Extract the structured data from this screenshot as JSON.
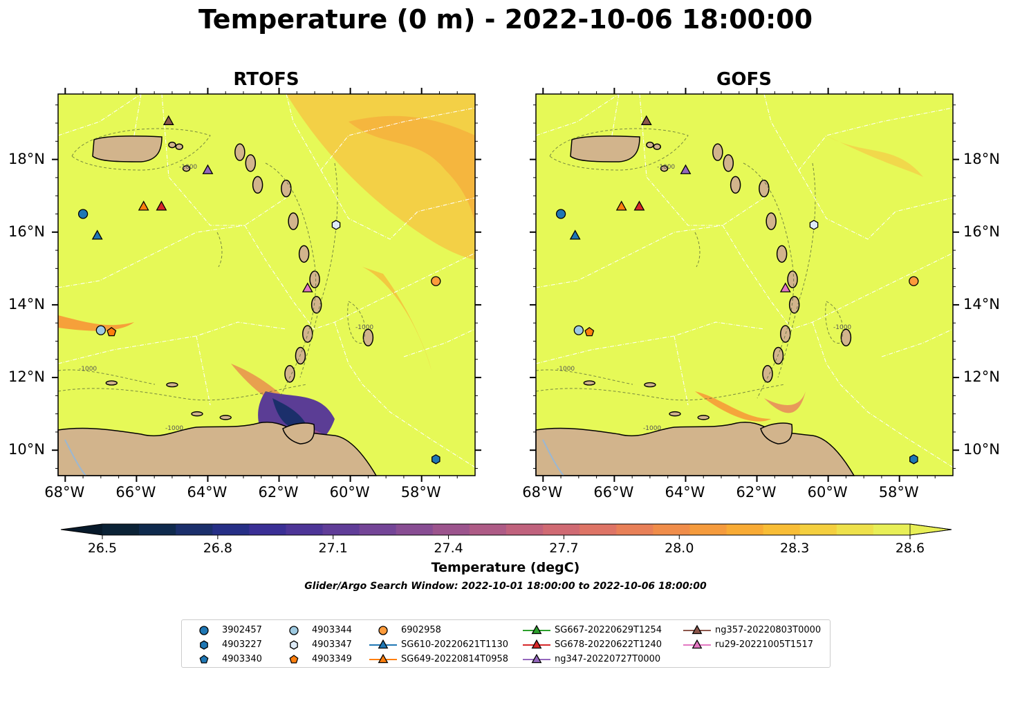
{
  "title": "Temperature (0 m) - 2022-10-06 18:00:00",
  "panels": [
    {
      "title": "RTOFS"
    },
    {
      "title": "GOFS"
    }
  ],
  "map": {
    "lon_range": [
      -68.2,
      -56.5
    ],
    "lat_range": [
      9.3,
      19.8
    ],
    "lon_ticks": [
      "68°W",
      "66°W",
      "64°W",
      "62°W",
      "60°W",
      "58°W"
    ],
    "lon_tick_values": [
      -68,
      -66,
      -64,
      -62,
      -60,
      -58
    ],
    "lat_ticks": [
      "18°N",
      "16°N",
      "14°N",
      "12°N",
      "10°N"
    ],
    "lat_tick_values": [
      18,
      16,
      14,
      12,
      10
    ],
    "contour_label": "-1000"
  },
  "colorbar": {
    "label": "Temperature (degC)",
    "range": [
      26.5,
      28.6
    ],
    "ticks": [
      "26.5",
      "26.8",
      "27.1",
      "27.4",
      "27.7",
      "28.0",
      "28.3",
      "28.6"
    ],
    "colors": [
      "#0b2236",
      "#0f2a4d",
      "#1b2f6b",
      "#262f86",
      "#3a2f95",
      "#4d3597",
      "#603d98",
      "#744597",
      "#884d93",
      "#9c548d",
      "#ae5b86",
      "#c0627d",
      "#d06a73",
      "#de7466",
      "#e88058",
      "#f08d4a",
      "#f59b3d",
      "#f8ab35",
      "#f8bd36",
      "#f4cf3f",
      "#eee14b",
      "#e8ef57"
    ]
  },
  "search_window": "Glider/Argo Search Window: 2022-10-01 18:00:00 to 2022-10-06 18:00:00",
  "colors": {
    "ocean": "#e6f957",
    "land": "#d2b48c",
    "warm": "#f7b53b",
    "cool": "#5b3d95"
  },
  "markers": [
    {
      "id": "3902457",
      "shape": "circle",
      "color": "#1f77b4",
      "lon": -67.5,
      "lat": 16.5
    },
    {
      "id": "4903227",
      "shape": "hexagon",
      "color": "#1f77b4",
      "lon": -57.6,
      "lat": 9.75
    },
    {
      "id": "4903340",
      "shape": "pentagon",
      "color": "#1f77b4",
      "lon": null,
      "lat": null
    },
    {
      "id": "4903344",
      "shape": "circle",
      "color": "#9ecae1",
      "lon": -67.0,
      "lat": 13.3
    },
    {
      "id": "4903347",
      "shape": "hexagon",
      "color": "#deebf7",
      "lon": -60.4,
      "lat": 16.2
    },
    {
      "id": "4903349",
      "shape": "pentagon",
      "color": "#ff7f0e",
      "lon": -66.7,
      "lat": 13.25
    },
    {
      "id": "6902958",
      "shape": "circle",
      "color": "#fd9b3b",
      "lon": -57.6,
      "lat": 14.65
    },
    {
      "id": "SG610-20220621T1130",
      "shape": "triangle",
      "color": "#1f77b4",
      "lon": -67.1,
      "lat": 15.9
    },
    {
      "id": "SG649-20220814T0958",
      "shape": "triangle",
      "color": "#ff7f0e",
      "lon": -65.8,
      "lat": 16.7
    },
    {
      "id": "SG667-20220629T1254",
      "shape": "triangle",
      "color": "#2ca02c",
      "lon": null,
      "lat": null
    },
    {
      "id": "SG678-20220622T1240",
      "shape": "triangle",
      "color": "#d62728",
      "lon": -65.3,
      "lat": 16.7
    },
    {
      "id": "ng347-20220727T0000",
      "shape": "triangle",
      "color": "#9467bd",
      "lon": -64.0,
      "lat": 17.7
    },
    {
      "id": "ng357-20220803T0000",
      "shape": "triangle",
      "color": "#8c564b",
      "lon": -65.1,
      "lat": 19.05
    },
    {
      "id": "ru29-20221005T1517",
      "shape": "triangle",
      "color": "#e377c2",
      "lon": -61.2,
      "lat": 14.45
    }
  ]
}
